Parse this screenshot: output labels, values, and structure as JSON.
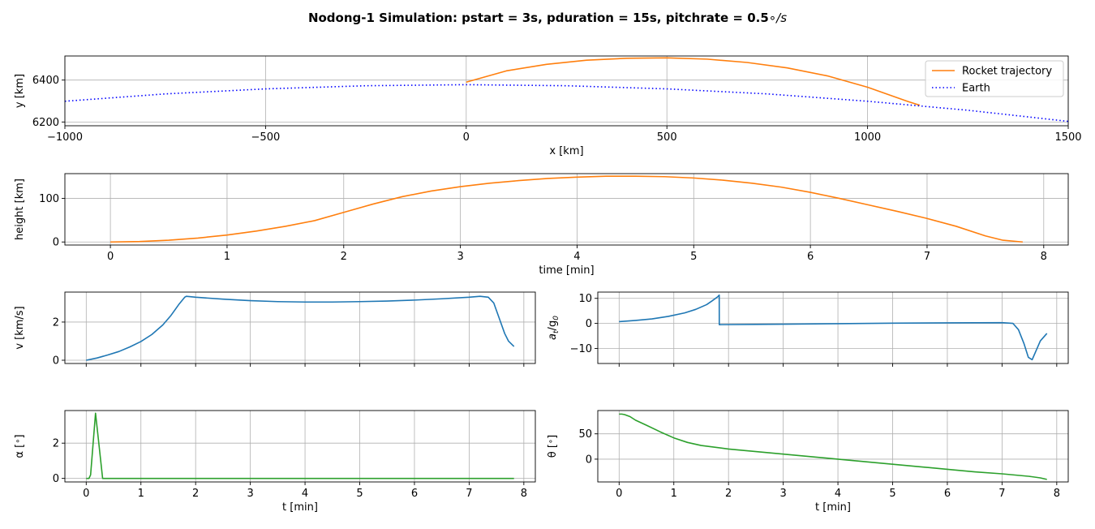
{
  "figure": {
    "title_main": "Nodong-1 Simulation: pstart = 3s, pduration = 15s, pitchrate = 0.5",
    "title_tail": "∘/s"
  },
  "colors": {
    "orange": "#ff7f0e",
    "blue": "#1f77b4",
    "green": "#2ca02c",
    "earth": "#0000ff",
    "grid": "#b0b0b0"
  },
  "chart_data": [
    {
      "id": "trajectory",
      "type": "line",
      "xlabel": "x [km]",
      "ylabel": "y [km]",
      "xlim": [
        -1000,
        1500
      ],
      "ylim": [
        6182,
        6515
      ],
      "xticks": [
        -1000,
        -500,
        0,
        500,
        1000,
        1500
      ],
      "xtick_labels": [
        "−1000",
        "−500",
        "0",
        "500",
        "1000",
        "1500"
      ],
      "yticks": [
        6200,
        6400
      ],
      "ytick_labels": [
        "6200",
        "6400"
      ],
      "grid": true,
      "legend": "top-right",
      "series": [
        {
          "name": "Rocket trajectory",
          "color": "#ff7f0e",
          "style": "solid",
          "x": [
            0,
            100,
            200,
            300,
            400,
            500,
            600,
            700,
            800,
            900,
            1000,
            1100,
            1130
          ],
          "y": [
            6390,
            6444,
            6475,
            6495,
            6504,
            6506,
            6500,
            6484,
            6458,
            6420,
            6366,
            6298,
            6280
          ]
        },
        {
          "name": "Earth",
          "color": "#0000ff",
          "style": "dotted",
          "x": [
            -1000,
            -750,
            -500,
            -250,
            0,
            250,
            500,
            750,
            1000,
            1250,
            1500
          ],
          "y": [
            6299,
            6334,
            6358,
            6373,
            6378,
            6373,
            6358,
            6334,
            6299,
            6256,
            6203
          ]
        }
      ]
    },
    {
      "id": "height",
      "type": "line",
      "xlabel": "time [min]",
      "ylabel": "height [km]",
      "xlim": [
        -0.39,
        8.21
      ],
      "ylim": [
        -7,
        157
      ],
      "xticks": [
        0,
        1,
        2,
        3,
        4,
        5,
        6,
        7,
        8
      ],
      "yticks": [
        0,
        100
      ],
      "grid": true,
      "series": [
        {
          "name": "",
          "color": "#ff7f0e",
          "x": [
            0,
            0.25,
            0.5,
            0.75,
            1,
            1.25,
            1.5,
            1.75,
            2,
            2.25,
            2.5,
            2.75,
            3,
            3.25,
            3.5,
            3.75,
            4,
            4.25,
            4.5,
            4.75,
            5,
            5.25,
            5.5,
            5.75,
            6,
            6.25,
            6.5,
            6.75,
            7,
            7.25,
            7.5,
            7.65,
            7.82
          ],
          "y": [
            0,
            1,
            4,
            9,
            16,
            25,
            36,
            49,
            68,
            87,
            104,
            117,
            127,
            135,
            141,
            146,
            149,
            151,
            151,
            150,
            147,
            142,
            135,
            126,
            114,
            100,
            85,
            70,
            54,
            36,
            14,
            4,
            0
          ]
        }
      ]
    },
    {
      "id": "velocity",
      "type": "line",
      "xlabel": "",
      "ylabel": "v [km/s]",
      "xlim": [
        -0.39,
        8.21
      ],
      "ylim": [
        -0.17,
        3.57
      ],
      "xticks": [
        0,
        1,
        2,
        3,
        4,
        5,
        6,
        7,
        8
      ],
      "show_xtick_labels": false,
      "yticks": [
        0,
        2
      ],
      "grid": true,
      "series": [
        {
          "name": "",
          "color": "#1f77b4",
          "x": [
            0,
            0.2,
            0.4,
            0.6,
            0.8,
            1.0,
            1.2,
            1.4,
            1.55,
            1.7,
            1.8,
            1.83,
            2.0,
            2.5,
            3,
            3.5,
            4,
            4.5,
            5,
            5.5,
            6,
            6.5,
            7,
            7.2,
            7.35,
            7.45,
            7.55,
            7.65,
            7.72,
            7.82
          ],
          "y": [
            0,
            0.12,
            0.28,
            0.46,
            0.7,
            0.98,
            1.35,
            1.85,
            2.35,
            2.95,
            3.3,
            3.35,
            3.3,
            3.2,
            3.12,
            3.07,
            3.05,
            3.05,
            3.07,
            3.1,
            3.15,
            3.22,
            3.3,
            3.35,
            3.3,
            3.0,
            2.2,
            1.4,
            1.0,
            0.72
          ]
        }
      ]
    },
    {
      "id": "acceleration",
      "type": "line",
      "xlabel": "",
      "ylabel_main": "a",
      "ylabel_sub": "t",
      "ylabel_mid": "/g",
      "ylabel_sub2": "0",
      "xlim": [
        -0.39,
        8.21
      ],
      "ylim": [
        -16,
        12.5
      ],
      "xticks": [
        0,
        1,
        2,
        3,
        4,
        5,
        6,
        7,
        8
      ],
      "show_xtick_labels": false,
      "yticks": [
        -10,
        0,
        10
      ],
      "ytick_labels": [
        "−10",
        "0",
        "10"
      ],
      "grid": true,
      "series": [
        {
          "name": "",
          "color": "#1f77b4",
          "x": [
            0,
            0.3,
            0.6,
            0.9,
            1.2,
            1.4,
            1.6,
            1.7,
            1.8,
            1.83,
            1.831,
            2.5,
            3,
            4,
            5,
            6,
            7,
            7.2,
            7.3,
            7.4,
            7.48,
            7.55,
            7.62,
            7.7,
            7.82
          ],
          "y": [
            0.7,
            1.2,
            1.8,
            2.8,
            4.2,
            5.6,
            7.5,
            9.0,
            10.6,
            11.3,
            -0.5,
            -0.4,
            -0.3,
            -0.1,
            0.1,
            0.2,
            0.3,
            0,
            -2.5,
            -8,
            -13.5,
            -14.5,
            -11,
            -7,
            -4
          ]
        }
      ]
    },
    {
      "id": "alpha",
      "type": "line",
      "xlabel": "t [min]",
      "ylabel_main": "α [",
      "ylabel_mid": "∘",
      "ylabel_tail": "]",
      "xlim": [
        -0.39,
        8.21
      ],
      "ylim": [
        -0.2,
        3.85
      ],
      "xticks": [
        0,
        1,
        2,
        3,
        4,
        5,
        6,
        7,
        8
      ],
      "yticks": [
        0,
        2
      ],
      "grid": true,
      "series": [
        {
          "name": "",
          "color": "#2ca02c",
          "x": [
            0,
            0.05,
            0.08,
            0.17,
            0.23,
            0.3,
            1,
            2,
            3,
            4,
            5,
            6,
            7,
            7.82
          ],
          "y": [
            0,
            0,
            0.2,
            3.7,
            2.0,
            0,
            0,
            0,
            0,
            0,
            0,
            0,
            0,
            0
          ]
        }
      ]
    },
    {
      "id": "theta",
      "type": "line",
      "xlabel": "t [min]",
      "ylabel_main": "θ [",
      "ylabel_mid": "∘",
      "ylabel_tail": "]",
      "xlim": [
        -0.39,
        8.21
      ],
      "ylim": [
        -45,
        96
      ],
      "xticks": [
        0,
        1,
        2,
        3,
        4,
        5,
        6,
        7,
        8
      ],
      "yticks": [
        0,
        50
      ],
      "grid": true,
      "series": [
        {
          "name": "",
          "color": "#2ca02c",
          "x": [
            0,
            0.05,
            0.1,
            0.2,
            0.3,
            0.5,
            0.75,
            1,
            1.25,
            1.5,
            2,
            2.5,
            3,
            3.5,
            4,
            4.5,
            5,
            5.5,
            6,
            6.5,
            7,
            7.3,
            7.5,
            7.7,
            7.82
          ],
          "y": [
            89,
            89,
            88,
            84,
            77,
            67,
            54,
            42,
            33,
            27,
            20,
            15,
            10,
            5,
            0,
            -5,
            -10,
            -15,
            -20,
            -25,
            -29,
            -32,
            -34,
            -37,
            -40
          ]
        }
      ]
    }
  ]
}
